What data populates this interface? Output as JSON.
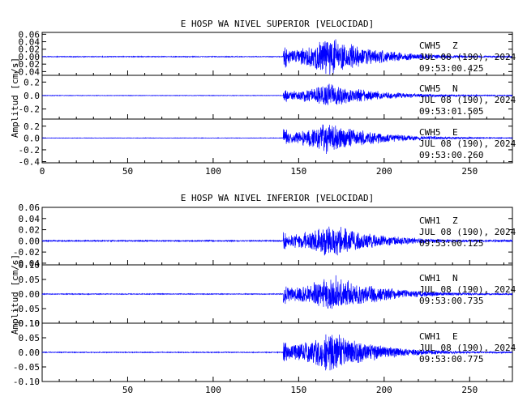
{
  "chart_data": [
    {
      "type": "line",
      "title": "E HOSP WA NIVEL SUPERIOR [VELOCIDAD]",
      "ylabel": "Amplitud [cm/s]",
      "xlim": [
        0,
        275
      ],
      "x_ticks": [
        "0",
        "50",
        "100",
        "150",
        "200",
        "250"
      ],
      "series_color": "#0000ff",
      "panels": [
        {
          "channel": "CWH5",
          "component": "Z",
          "date": "JUL 08 (190), 2024",
          "time": "09:53:00.425",
          "ylim": [
            -0.05,
            0.065
          ],
          "y_ticks": [
            "0.06",
            "0.04",
            "0.02",
            "0.00",
            "-0.02",
            "-0.04"
          ],
          "onset_s": 141,
          "peak_s": 168,
          "peak_amp": 0.055,
          "noise_amp": 0.0012
        },
        {
          "channel": "CWH5",
          "component": "N",
          "date": "JUL 08 (190), 2024",
          "time": "09:53:01.505",
          "ylim": [
            -0.35,
            0.3
          ],
          "y_ticks": [
            "0.2",
            "0.0",
            "-0.2"
          ],
          "onset_s": 141,
          "peak_s": 167,
          "peak_amp": 0.2,
          "noise_amp": 0.004
        },
        {
          "channel": "CWH5",
          "component": "E",
          "date": "JUL 08 (190), 2024",
          "time": "09:53:00.260",
          "ylim": [
            -0.42,
            0.32
          ],
          "y_ticks": [
            "0.2",
            "0.0",
            "-0.2",
            "-0.4"
          ],
          "onset_s": 141,
          "peak_s": 166,
          "peak_amp": 0.28,
          "noise_amp": 0.004
        }
      ]
    },
    {
      "type": "line",
      "title": "E HOSP WA NIVEL INFERIOR [VELOCIDAD]",
      "ylabel": "Amplitud [cm/s]",
      "xlim": [
        0,
        275
      ],
      "x_ticks": [
        "50",
        "100",
        "150",
        "200",
        "250"
      ],
      "series_color": "#0000ff",
      "panels": [
        {
          "channel": "CWH1",
          "component": "Z",
          "date": "JUL 08 (190), 2024",
          "time": "09:53:00.125",
          "ylim": [
            -0.043,
            0.06
          ],
          "y_ticks": [
            "0.06",
            "0.04",
            "0.02",
            "0.00",
            "-0.02",
            "-0.04"
          ],
          "onset_s": 141,
          "peak_s": 168,
          "peak_amp": 0.034,
          "noise_amp": 0.0012
        },
        {
          "channel": "CWH1",
          "component": "N",
          "date": "JUL 08 (190), 2024",
          "time": "09:53:00.735",
          "ylim": [
            -0.1,
            0.1
          ],
          "y_ticks": [
            "0.10",
            "0.05",
            "0.00",
            "-0.05",
            "-0.10"
          ],
          "onset_s": 141,
          "peak_s": 170,
          "peak_amp": 0.07,
          "noise_amp": 0.0015
        },
        {
          "channel": "CWH1",
          "component": "E",
          "date": "JUL 08 (190), 2024",
          "time": "09:53:00.775",
          "ylim": [
            -0.1,
            0.1
          ],
          "y_ticks": [
            "0.10",
            "0.05",
            "0.00",
            "-0.05",
            "-0.10"
          ],
          "onset_s": 141,
          "peak_s": 168,
          "peak_amp": 0.075,
          "noise_amp": 0.0015
        }
      ]
    }
  ]
}
